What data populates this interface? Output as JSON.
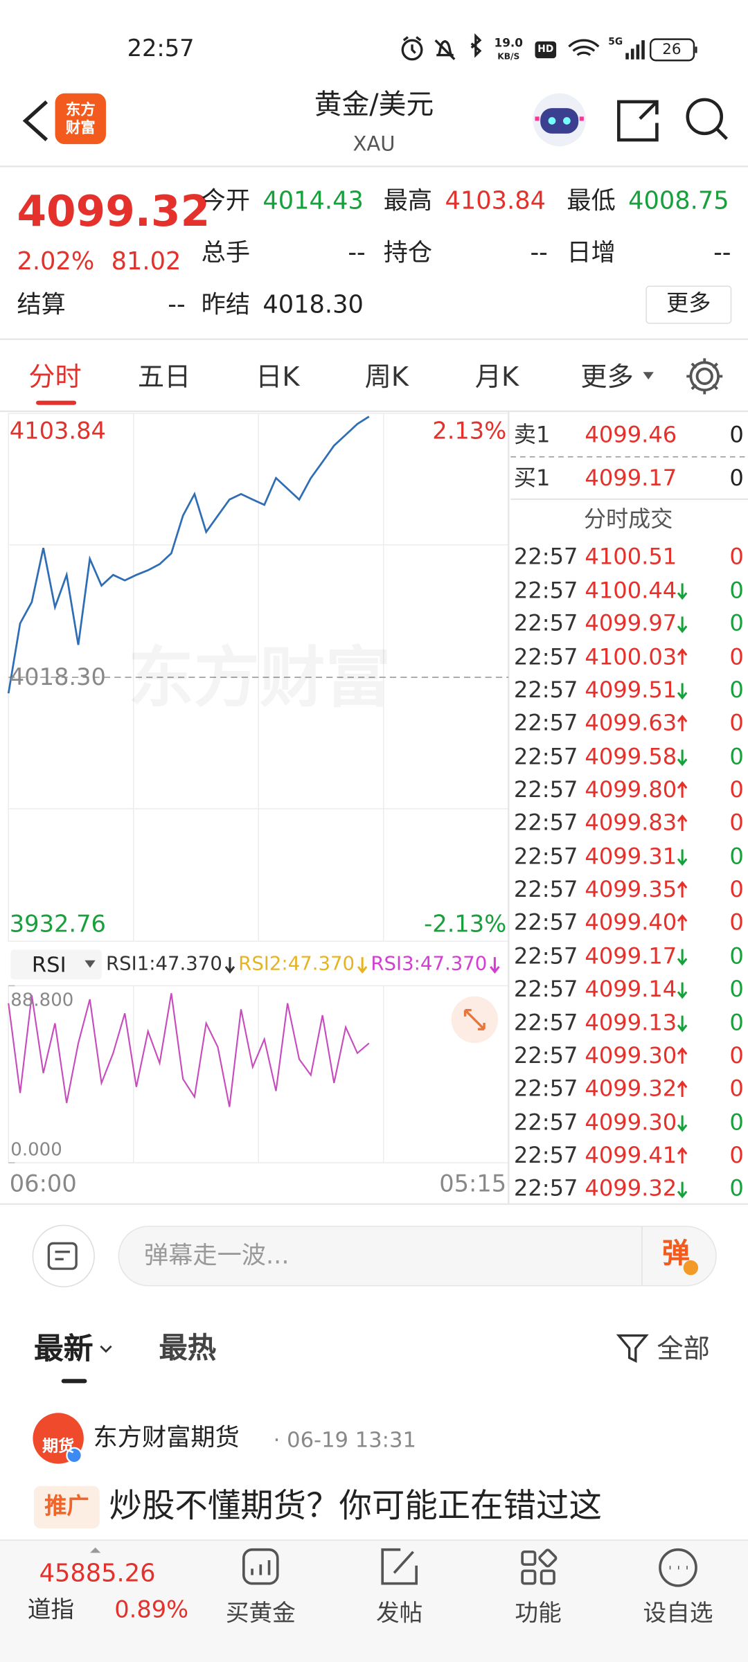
{
  "status_bar": {
    "time": "22:57",
    "speed": "19.0",
    "speed_unit": "KB/S",
    "hd": "HD",
    "network": "5G",
    "battery": "26"
  },
  "header": {
    "logo": [
      "东方",
      "财富"
    ],
    "title": "黄金/美元",
    "subtitle": "XAU"
  },
  "quote": {
    "price": "4099.32",
    "change_pct": "2.02%",
    "change": "81.02",
    "fields": [
      {
        "label": "今开",
        "value": "4014.43",
        "trend": "down"
      },
      {
        "label": "最高",
        "value": "4103.84",
        "trend": "up"
      },
      {
        "label": "最低",
        "value": "4008.75",
        "trend": "down"
      },
      {
        "label": "总手",
        "value": "--",
        "trend": "flat"
      },
      {
        "label": "持仓",
        "value": "--",
        "trend": "flat"
      },
      {
        "label": "日增",
        "value": "--",
        "trend": "flat"
      }
    ],
    "settle": {
      "label": "结算",
      "value": "--"
    },
    "prev_settle": {
      "label": "昨结",
      "value": "4018.30"
    },
    "more": "更多"
  },
  "tabs": [
    "分时",
    "五日",
    "日K",
    "周K",
    "月K",
    "更多"
  ],
  "chart": {
    "watermark": "东方财富",
    "ylim": [
      3932.76,
      4103.84
    ],
    "base": {
      "value": 4018.3,
      "label": "4018.30"
    },
    "pct_top": "2.13%",
    "pct_bottom": "-2.13%",
    "color": "#2f6db5",
    "values": [
      4013.1,
      4035.8,
      4042.7,
      4060.2,
      4041.0,
      4051.5,
      4028.8,
      4056.7,
      4048.0,
      4051.5,
      4049.7,
      4051.5,
      4053.0,
      4055.0,
      4058.5,
      4070.7,
      4077.7,
      4065.4,
      4070.7,
      4075.9,
      4077.7,
      4075.9,
      4074.2,
      4082.9,
      4079.4,
      4075.9,
      4082.9,
      4088.1,
      4093.4,
      4096.9,
      4100.4,
      4102.8,
      null,
      null,
      null,
      null,
      null,
      null,
      null,
      null,
      null,
      null,
      null,
      null
    ],
    "x_labels": [
      "06:00",
      "05:15"
    ]
  },
  "rsi": {
    "name": "RSI",
    "labels": [
      "RSI1:47.370",
      "RSI2:47.370",
      "RSI3:47.370"
    ],
    "label_colors": [
      "#333333",
      "#e6b422",
      "#d23fd0"
    ],
    "color": "#c84bbd",
    "ylim": [
      {
        "value": 0,
        "label": "0.000"
      },
      {
        "value": 88.8,
        "label": "88.800"
      }
    ],
    "values": [
      80,
      35,
      84,
      45,
      70,
      30,
      60,
      82,
      40,
      55,
      75,
      38,
      66,
      50,
      85,
      42,
      33,
      70,
      58,
      28,
      77,
      48,
      62,
      36,
      80,
      52,
      44,
      74,
      40,
      68,
      55,
      60,
      null,
      null,
      null,
      null,
      null,
      null,
      null,
      null,
      null,
      null,
      null,
      null
    ]
  },
  "order_book": {
    "asks": [
      {
        "label": "卖1",
        "price": "4099.46",
        "volume": "0"
      }
    ],
    "bids": [
      {
        "label": "买1",
        "price": "4099.17",
        "volume": "0"
      }
    ]
  },
  "trades": {
    "title": "分时成交",
    "rows": [
      {
        "time": "22:57",
        "price": "4100.51",
        "volume": "0",
        "dir": "none"
      },
      {
        "time": "22:57",
        "price": "4100.44",
        "volume": "0",
        "dir": "down"
      },
      {
        "time": "22:57",
        "price": "4099.97",
        "volume": "0",
        "dir": "down"
      },
      {
        "time": "22:57",
        "price": "4100.03",
        "volume": "0",
        "dir": "up"
      },
      {
        "time": "22:57",
        "price": "4099.51",
        "volume": "0",
        "dir": "down"
      },
      {
        "time": "22:57",
        "price": "4099.63",
        "volume": "0",
        "dir": "up"
      },
      {
        "time": "22:57",
        "price": "4099.58",
        "volume": "0",
        "dir": "down"
      },
      {
        "time": "22:57",
        "price": "4099.80",
        "volume": "0",
        "dir": "up"
      },
      {
        "time": "22:57",
        "price": "4099.83",
        "volume": "0",
        "dir": "up"
      },
      {
        "time": "22:57",
        "price": "4099.31",
        "volume": "0",
        "dir": "down"
      },
      {
        "time": "22:57",
        "price": "4099.35",
        "volume": "0",
        "dir": "up"
      },
      {
        "time": "22:57",
        "price": "4099.40",
        "volume": "0",
        "dir": "up"
      },
      {
        "time": "22:57",
        "price": "4099.17",
        "volume": "0",
        "dir": "down"
      },
      {
        "time": "22:57",
        "price": "4099.14",
        "volume": "0",
        "dir": "down"
      },
      {
        "time": "22:57",
        "price": "4099.13",
        "volume": "0",
        "dir": "down"
      },
      {
        "time": "22:57",
        "price": "4099.30",
        "volume": "0",
        "dir": "up"
      },
      {
        "time": "22:57",
        "price": "4099.32",
        "volume": "0",
        "dir": "up"
      },
      {
        "time": "22:57",
        "price": "4099.30",
        "volume": "0",
        "dir": "down"
      },
      {
        "time": "22:57",
        "price": "4099.41",
        "volume": "0",
        "dir": "up"
      },
      {
        "time": "22:57",
        "price": "4099.32",
        "volume": "0",
        "dir": "down"
      }
    ]
  },
  "comment_bar": {
    "placeholder": "弹幕走一波...",
    "button": "弹"
  },
  "feed": {
    "tabs": [
      "最新",
      "最热"
    ],
    "filter": "全部",
    "post": {
      "avatar": "期货",
      "author": "东方财富期货",
      "time": "· 06-19 13:31",
      "tag": "推广",
      "title": "炒股不懂期货？你可能正在错过这"
    }
  },
  "bottom_bar": {
    "index_value": "45885.26",
    "index_name": "道指",
    "index_change": "0.89%",
    "nav": [
      "买黄金",
      "发帖",
      "功能",
      "设自选"
    ]
  }
}
